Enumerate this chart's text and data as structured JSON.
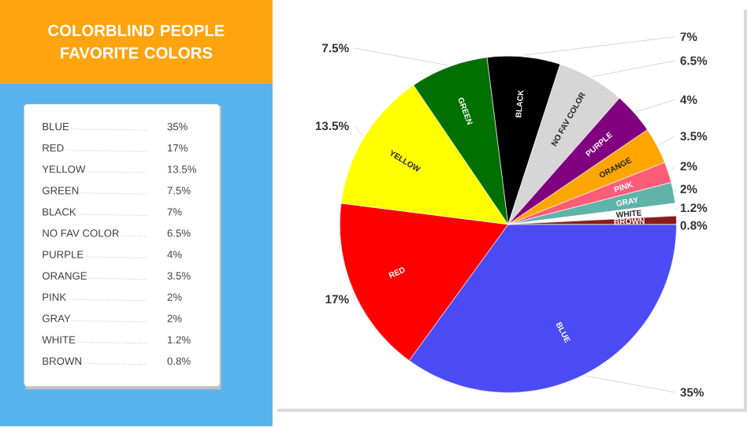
{
  "chart_data": {
    "type": "pie",
    "title": "COLORBLIND PEOPLE FAVORITE COLORS",
    "categories": [
      "BLUE",
      "RED",
      "YELLOW",
      "GREEN",
      "BLACK",
      "NO FAV COLOR",
      "PURPLE",
      "ORANGE",
      "PINK",
      "GRAY",
      "WHITE",
      "BROWN"
    ],
    "values": [
      35,
      17,
      13.5,
      7.5,
      7,
      6.5,
      4,
      3.5,
      2,
      2,
      1.2,
      0.8
    ],
    "value_labels": [
      "35%",
      "17%",
      "13.5%",
      "7.5%",
      "7%",
      "6.5%",
      "4%",
      "3.5%",
      "2%",
      "2%",
      "1.2%",
      "0.8%"
    ],
    "colors": [
      "#4b4bf5",
      "#ff0000",
      "#ffff00",
      "#007000",
      "#000000",
      "#d6d6d6",
      "#800080",
      "#ffa500",
      "#ff5c7a",
      "#5fb3a8",
      "#ffffff",
      "#8b1a1a"
    ]
  }
}
